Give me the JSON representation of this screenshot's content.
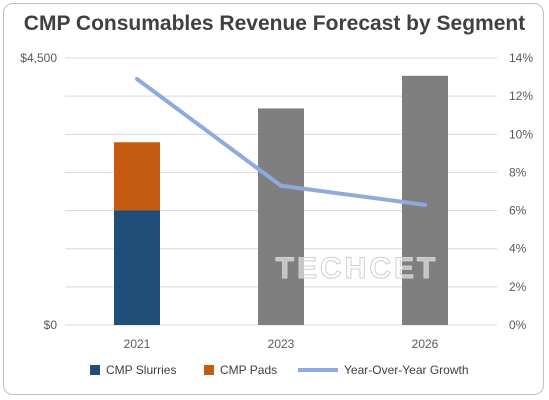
{
  "chart_data": {
    "type": "bar",
    "title": "CMP Consumables Revenue Forecast by Segment",
    "categories": [
      "2021",
      "2023",
      "2026"
    ],
    "y_left": {
      "min": 0,
      "max": 4500,
      "tick_labels": [
        "$0",
        "$4,500"
      ]
    },
    "y_right": {
      "min": 0,
      "max": 14,
      "step": 2,
      "tick_labels": [
        "0%",
        "2%",
        "4%",
        "6%",
        "8%",
        "10%",
        "12%",
        "14%"
      ]
    },
    "grid": true,
    "legend_position": "bottom",
    "stacked_series": [
      {
        "name": "CMP Slurries",
        "color": "#1f4e79",
        "values": [
          1930,
          null,
          null
        ]
      },
      {
        "name": "CMP Pads",
        "color": "#c55a11",
        "values": [
          1150,
          null,
          null
        ]
      }
    ],
    "total_series": {
      "color": "#7f7f7f",
      "values": [
        null,
        3650,
        4200
      ]
    },
    "line_series": {
      "name": "Year-Over-Year Growth",
      "color": "#8faadc",
      "axis": "right",
      "values": [
        12.9,
        7.3,
        6.3
      ]
    },
    "watermark": "TECHCET"
  }
}
